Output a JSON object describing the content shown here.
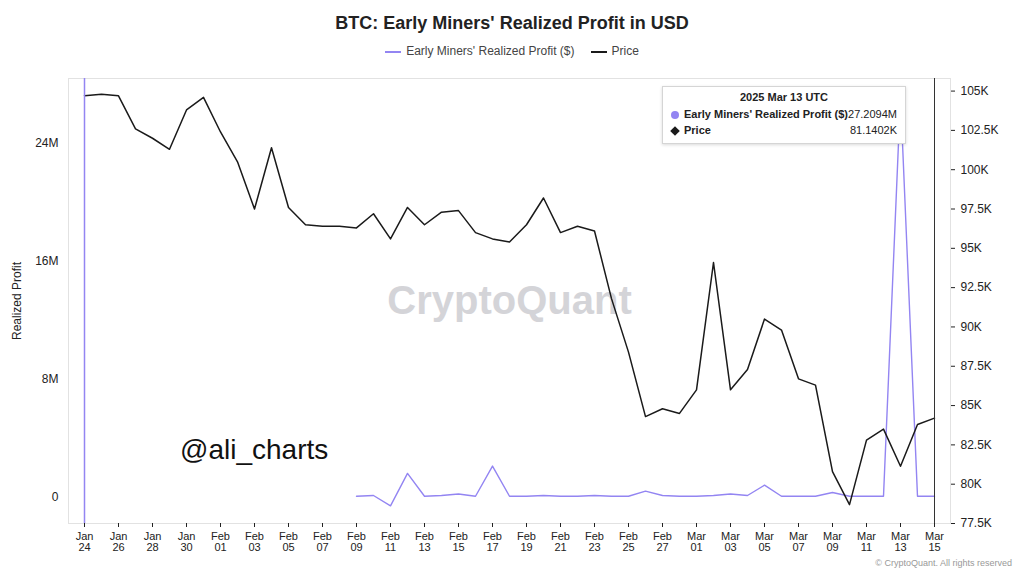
{
  "chart_data": {
    "type": "line",
    "title": "BTC: Early Miners' Realized Profit in USD",
    "y_label": "Realized Profit",
    "legend": "top",
    "grid": false,
    "categories": [
      "Jan 24",
      null,
      "Jan 26",
      null,
      "Jan 28",
      null,
      "Jan 30",
      null,
      "Feb 01",
      null,
      "Feb 03",
      null,
      "Feb 05",
      null,
      "Feb 07",
      null,
      "Feb 09",
      null,
      "Feb 11",
      null,
      "Feb 13",
      null,
      "Feb 15",
      null,
      "Feb 17",
      null,
      "Feb 19",
      null,
      "Feb 21",
      null,
      "Feb 23",
      null,
      "Feb 25",
      null,
      "Feb 27",
      null,
      "Mar 01",
      null,
      "Mar 03",
      null,
      "Mar 05",
      null,
      "Mar 07",
      null,
      "Mar 09",
      null,
      "Mar 11",
      null,
      "Mar 13",
      null,
      "Mar 15"
    ],
    "series": [
      {
        "name": "Early Miners' Realized Profit ($)",
        "color": "#9385f2",
        "values": [
          null,
          null,
          null,
          null,
          null,
          null,
          null,
          null,
          null,
          null,
          null,
          null,
          null,
          null,
          null,
          null,
          50000,
          100000,
          -600000,
          1600000,
          50000,
          100000,
          200000,
          50000,
          2100000,
          50000,
          50000,
          100000,
          50000,
          50000,
          100000,
          50000,
          50000,
          400000,
          100000,
          50000,
          50000,
          100000,
          200000,
          100000,
          800000,
          50000,
          50000,
          50000,
          300000,
          50000,
          50000,
          50000,
          27209400,
          50000,
          50000
        ]
      },
      {
        "name": "Price",
        "color": "#1a1a1a",
        "axis": "y2",
        "values": [
          104700,
          104800,
          104700,
          102600,
          102000,
          101300,
          103800,
          104600,
          102400,
          100500,
          97500,
          101400,
          97600,
          96500,
          96400,
          96400,
          96300,
          97200,
          95600,
          97600,
          96500,
          97300,
          97400,
          96000,
          95600,
          95400,
          96500,
          98200,
          96000,
          96400,
          96100,
          91800,
          88400,
          84300,
          84800,
          84500,
          86000,
          94100,
          86000,
          87300,
          90500,
          89800,
          86700,
          86300,
          80800,
          78700,
          82800,
          83500,
          81140.2,
          83800,
          84200
        ]
      }
    ],
    "ylim": [
      -1800000,
      28400000
    ],
    "yticks": [
      0,
      {
        "value": 8000000,
        "label": "8M"
      },
      {
        "value": 16000000,
        "label": "16M"
      },
      {
        "value": 24000000,
        "label": "24M"
      }
    ],
    "y2lim": [
      77500,
      105800
    ],
    "y2ticks": [
      {
        "value": 77500,
        "label": "77.5K"
      },
      {
        "value": 80000,
        "label": "80K"
      },
      {
        "value": 82500,
        "label": "82.5K"
      },
      {
        "value": 85000,
        "label": "85K"
      },
      {
        "value": 87500,
        "label": "87.5K"
      },
      {
        "value": 90000,
        "label": "90K"
      },
      {
        "value": 92500,
        "label": "92.5K"
      },
      {
        "value": 95000,
        "label": "95K"
      },
      {
        "value": 97500,
        "label": "97.5K"
      },
      {
        "value": 100000,
        "label": "100K"
      },
      {
        "value": 102500,
        "label": "102.5K"
      },
      {
        "value": 105000,
        "label": "105K"
      }
    ],
    "annotations": {
      "tooltip": {
        "date": "2025 Mar 13 UTC",
        "items": [
          {
            "name": "Early Miners' Realized Profit ($)",
            "value": 27209400,
            "label": "27.2094M"
          },
          {
            "name": "Price",
            "value": 81140.2,
            "label": "81.1402K"
          }
        ]
      },
      "watermark": "CryptoQuant",
      "handle": "@ali_charts",
      "credit": "© CryptoQuant. All rights reserved"
    }
  }
}
